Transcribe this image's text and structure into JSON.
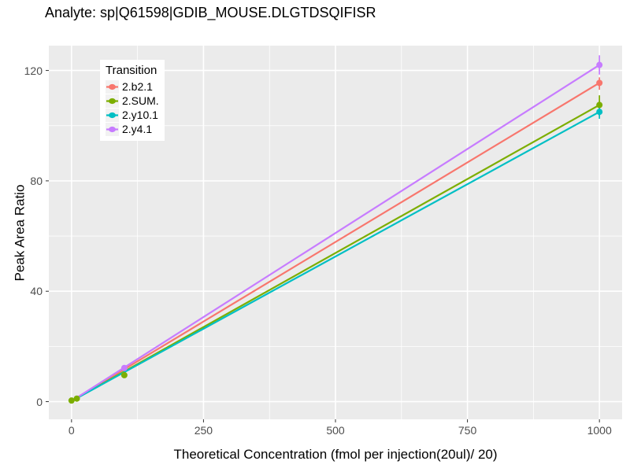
{
  "chart_data": {
    "type": "line",
    "title": "Analyte: sp|Q61598|GDIB_MOUSE.DLGTDSQIFISR",
    "xlabel": "Theoretical Concentration (fmol per injection(20ul)/ 20)",
    "ylabel": "Peak Area Ratio",
    "xlim": [
      -43,
      1043
    ],
    "ylim": [
      -6.4,
      129
    ],
    "x_ticks": [
      0,
      250,
      500,
      750,
      1000
    ],
    "y_ticks": [
      0,
      40,
      80,
      120
    ],
    "x_minor_ticks": [
      125,
      375,
      625,
      875
    ],
    "y_minor_ticks": [
      20,
      60,
      100
    ],
    "grid": true,
    "panel_bg": "#ebebeb",
    "grid_color": "#ffffff",
    "tick_label_color": "#4d4d4d",
    "legend": {
      "title": "Transition",
      "position": "top-left-inside"
    },
    "series": [
      {
        "name": "2.b2.1",
        "color": "#F8766D",
        "line": [
          [
            0,
            0.2
          ],
          [
            1000,
            115.5
          ]
        ],
        "points": [
          [
            1000,
            115.5
          ]
        ],
        "error_bars": [
          {
            "x": 1000,
            "low": 113.0,
            "high": 117.5
          }
        ]
      },
      {
        "name": "2.SUM.",
        "color": "#7CAE00",
        "line": [
          [
            0,
            0.2
          ],
          [
            1000,
            107.5
          ]
        ],
        "points": [
          [
            0,
            0.4
          ],
          [
            10,
            1.1
          ],
          [
            100,
            9.6
          ],
          [
            1000,
            107.5
          ]
        ],
        "error_bars": [
          {
            "x": 1000,
            "low": 103.5,
            "high": 111.0
          }
        ]
      },
      {
        "name": "2.y10.1",
        "color": "#00BFC4",
        "line": [
          [
            0,
            0.2
          ],
          [
            1000,
            105.0
          ]
        ],
        "points": [
          [
            1000,
            105.0
          ]
        ],
        "error_bars": [
          {
            "x": 1000,
            "low": 102.5,
            "high": 107.5
          }
        ]
      },
      {
        "name": "2.y4.1",
        "color": "#C77CFF",
        "line": [
          [
            0,
            0.2
          ],
          [
            1000,
            122.0
          ]
        ],
        "points": [
          [
            100,
            12.2
          ],
          [
            1000,
            122.0
          ]
        ],
        "error_bars": [
          {
            "x": 1000,
            "low": 118.5,
            "high": 125.5
          }
        ]
      }
    ]
  }
}
